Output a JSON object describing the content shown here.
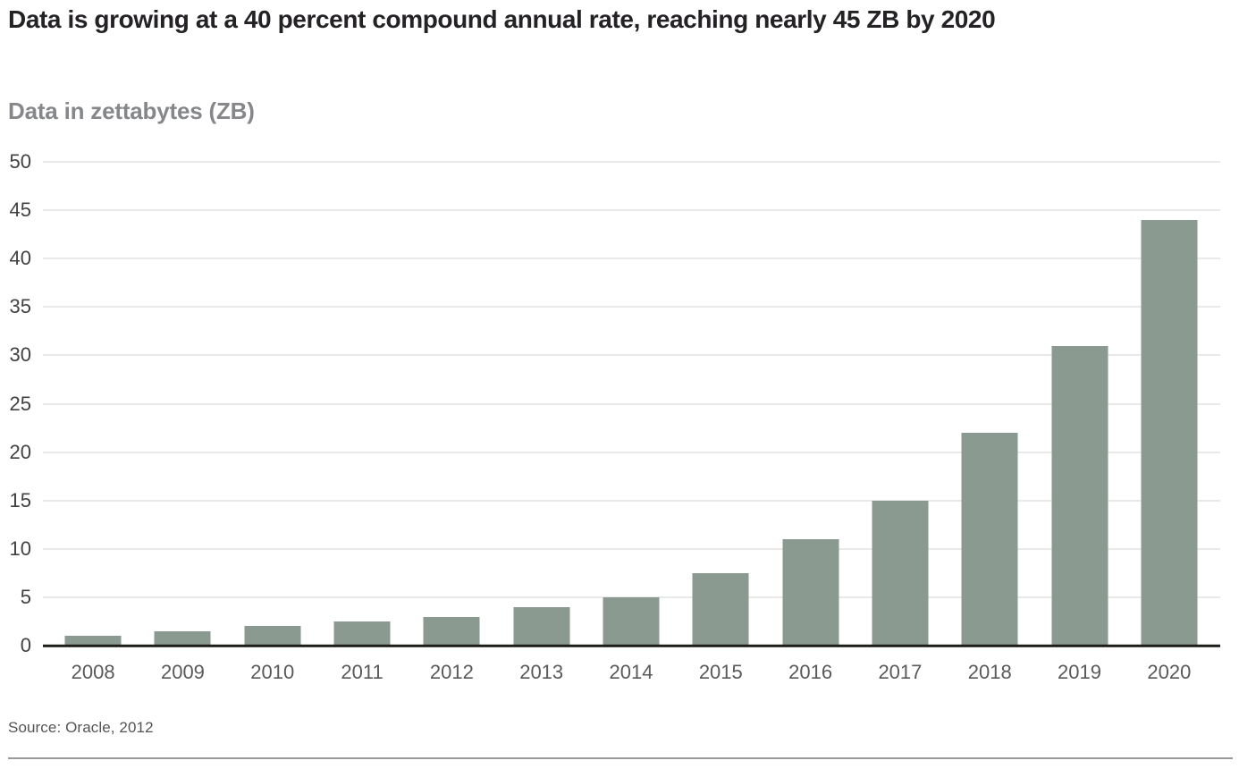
{
  "chart_data": {
    "type": "bar",
    "title": "Data is growing at a 40 percent compound annual rate, reaching nearly 45 ZB by 2020",
    "subtitle": "Data in zettabytes (ZB)",
    "source": "Source: Oracle, 2012",
    "categories": [
      "2008",
      "2009",
      "2010",
      "2011",
      "2012",
      "2013",
      "2014",
      "2015",
      "2016",
      "2017",
      "2018",
      "2019",
      "2020"
    ],
    "values": [
      1,
      1.5,
      2,
      2.5,
      3,
      4,
      5,
      7.5,
      11,
      15,
      22,
      31,
      44
    ],
    "ylabel": "Data in zettabytes (ZB)",
    "xlabel": "",
    "ylim": [
      0,
      50
    ],
    "yticks": [
      0,
      5,
      10,
      15,
      20,
      25,
      30,
      35,
      40,
      45,
      50
    ],
    "grid": true,
    "legend_position": "none",
    "colors": {
      "bar": "#8a9a91",
      "gridline": "#d3d3d3",
      "axis_line": "#1d1d1b",
      "title_text": "#242225",
      "subtitle_text": "#85878a",
      "tick_text": "#59595b"
    }
  }
}
